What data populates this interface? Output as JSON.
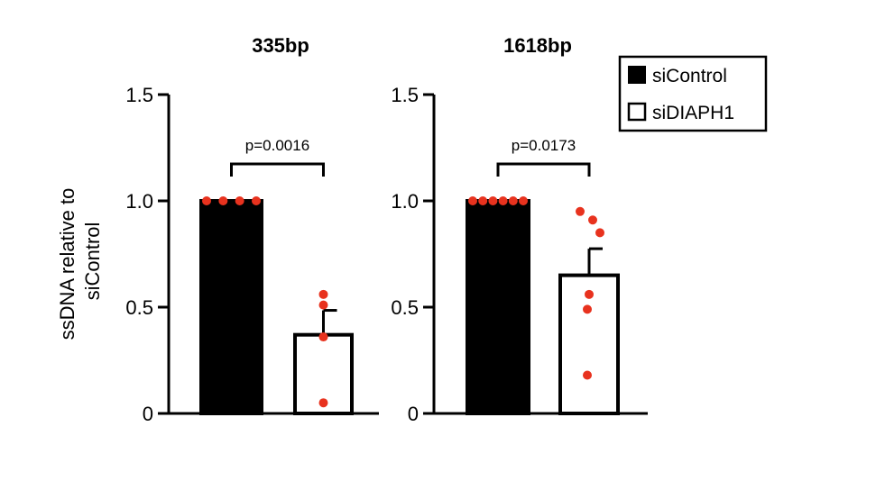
{
  "chart_data": {
    "type": "bar",
    "ylabel": "ssDNA relative to siControl",
    "ylabel_lines": [
      "ssDNA relative to",
      "siControl"
    ],
    "ylim": [
      0,
      1.5
    ],
    "yticks": [
      "0",
      "0.5",
      "1.0",
      "1.5"
    ],
    "ytick_values": [
      0,
      0.5,
      1.0,
      1.5
    ],
    "legend": {
      "placement": "top-right",
      "entries": [
        {
          "label": "siControl",
          "fill": "#000000"
        },
        {
          "label": "siDIAPH1",
          "fill": "#ffffff"
        }
      ]
    },
    "point_color": "#e8321e",
    "panels": [
      {
        "title": "335bp",
        "pvalue": "p=0.0016",
        "bars": [
          {
            "series": "siControl",
            "value": 1.0,
            "error": 0,
            "points": [
              1.0,
              1.0,
              1.0,
              1.0
            ]
          },
          {
            "series": "siDIAPH1",
            "value": 0.37,
            "error": 0.115,
            "points": [
              0.56,
              0.51,
              0.36,
              0.05
            ]
          }
        ]
      },
      {
        "title": "1618bp",
        "pvalue": "p=0.0173",
        "bars": [
          {
            "series": "siControl",
            "value": 1.0,
            "error": 0,
            "points": [
              1.0,
              1.0,
              1.0,
              1.0,
              1.0,
              1.0
            ]
          },
          {
            "series": "siDIAPH1",
            "value": 0.65,
            "error": 0.125,
            "points": [
              0.95,
              0.91,
              0.85,
              0.56,
              0.49,
              0.18
            ]
          }
        ]
      }
    ]
  }
}
